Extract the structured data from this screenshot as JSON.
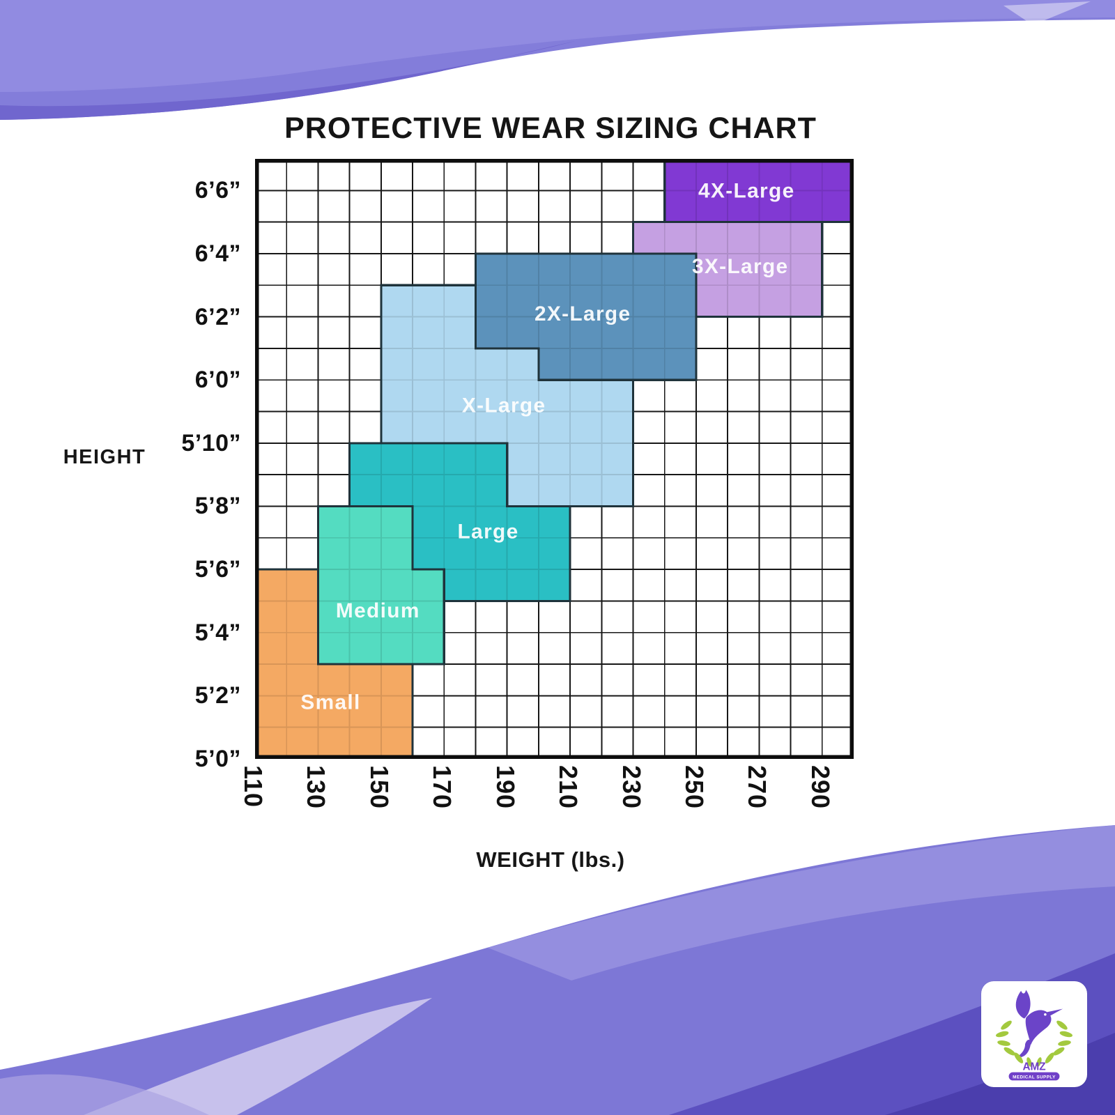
{
  "header": {
    "title": "PROTECTIVE WEAR SIZING CHART"
  },
  "axes": {
    "y_label": "HEIGHT",
    "x_label": "WEIGHT (lbs.)"
  },
  "logo": {
    "brand": "AMZ",
    "tagline": "MEDICAL SUPPLY",
    "bird_color": "#6B44C8",
    "leaf_color": "#A3C93E",
    "text_color": "#7040C8"
  },
  "decor": {
    "swoosh_base": "#837DDA",
    "swoosh_light": "#968FE2",
    "swoosh_wedge_dark": "#6F65CE",
    "swoosh_bottom_base": "#7D77D6",
    "swoosh_pale": "#D3CEF0",
    "swoosh_dark": "#5C50C0",
    "swoosh_darkest": "#4B3EAD"
  },
  "chart_data": {
    "type": "area",
    "subtype": "step-region-grid",
    "title": "PROTECTIVE WEAR SIZING CHART",
    "xlabel": "WEIGHT (lbs.)",
    "ylabel": "HEIGHT",
    "grid": true,
    "xlim_lbs": [
      110,
      300
    ],
    "ylim_inches": [
      60,
      79
    ],
    "cell_size": {
      "lbs": 10,
      "inches": 1
    },
    "grid_color": "#1A1A1A",
    "border_color": "#0D0D0D",
    "region_outline_color": "#1F333B",
    "label_text_color": "#FFFFFF",
    "x_ticks": [
      110,
      130,
      150,
      170,
      190,
      210,
      230,
      250,
      270,
      290
    ],
    "y_ticks": [
      {
        "label": "6’6”",
        "inches": 78
      },
      {
        "label": "6’4”",
        "inches": 76
      },
      {
        "label": "6’2”",
        "inches": 74
      },
      {
        "label": "6’0”",
        "inches": 72
      },
      {
        "label": "5’10”",
        "inches": 70
      },
      {
        "label": "5’8”",
        "inches": 68
      },
      {
        "label": "5’6”",
        "inches": 66
      },
      {
        "label": "5’4”",
        "inches": 64
      },
      {
        "label": "5’2”",
        "inches": 62
      },
      {
        "label": "5’0”",
        "inches": 60
      }
    ],
    "regions": [
      {
        "name": "Small",
        "color": "#F4A963",
        "label_pos": {
          "lbs": 134,
          "inches": 61.8
        },
        "polygon": [
          [
            110,
            60
          ],
          [
            110,
            66
          ],
          [
            130,
            66
          ],
          [
            130,
            63
          ],
          [
            160,
            63
          ],
          [
            160,
            60
          ]
        ]
      },
      {
        "name": "Medium",
        "color": "#54DCC1",
        "label_pos": {
          "lbs": 149,
          "inches": 64.7
        },
        "polygon": [
          [
            130,
            63
          ],
          [
            130,
            68
          ],
          [
            160,
            68
          ],
          [
            160,
            66
          ],
          [
            170,
            66
          ],
          [
            170,
            63
          ]
        ]
      },
      {
        "name": "Large",
        "color": "#2ABFC4",
        "label_pos": {
          "lbs": 184,
          "inches": 67.2
        },
        "polygon": [
          [
            140,
            68
          ],
          [
            140,
            70
          ],
          [
            190,
            70
          ],
          [
            190,
            68
          ],
          [
            210,
            68
          ],
          [
            210,
            65
          ],
          [
            170,
            65
          ],
          [
            170,
            66
          ],
          [
            160,
            66
          ],
          [
            160,
            68
          ]
        ]
      },
      {
        "name": "X-Large",
        "color": "#AFD8F0",
        "label_pos": {
          "lbs": 189,
          "inches": 71.2
        },
        "polygon": [
          [
            150,
            70
          ],
          [
            150,
            75
          ],
          [
            180,
            75
          ],
          [
            180,
            73
          ],
          [
            200,
            73
          ],
          [
            200,
            72
          ],
          [
            230,
            72
          ],
          [
            230,
            68
          ],
          [
            190,
            68
          ],
          [
            190,
            70
          ]
        ]
      },
      {
        "name": "2X-Large",
        "color": "#5C92BB",
        "label_pos": {
          "lbs": 214,
          "inches": 74.1
        },
        "polygon": [
          [
            180,
            73
          ],
          [
            180,
            76
          ],
          [
            250,
            76
          ],
          [
            250,
            72
          ],
          [
            200,
            72
          ],
          [
            200,
            73
          ]
        ]
      },
      {
        "name": "3X-Large",
        "color": "#C5A0E2",
        "label_pos": {
          "lbs": 264,
          "inches": 75.6
        },
        "polygon": [
          [
            230,
            76
          ],
          [
            230,
            77
          ],
          [
            290,
            77
          ],
          [
            290,
            74
          ],
          [
            250,
            74
          ],
          [
            250,
            76
          ]
        ]
      },
      {
        "name": "4X-Large",
        "color": "#8139D3",
        "label_pos": {
          "lbs": 266,
          "inches": 78.0
        },
        "polygon": [
          [
            240,
            77
          ],
          [
            240,
            79
          ],
          [
            300,
            79
          ],
          [
            300,
            77
          ]
        ]
      }
    ]
  }
}
